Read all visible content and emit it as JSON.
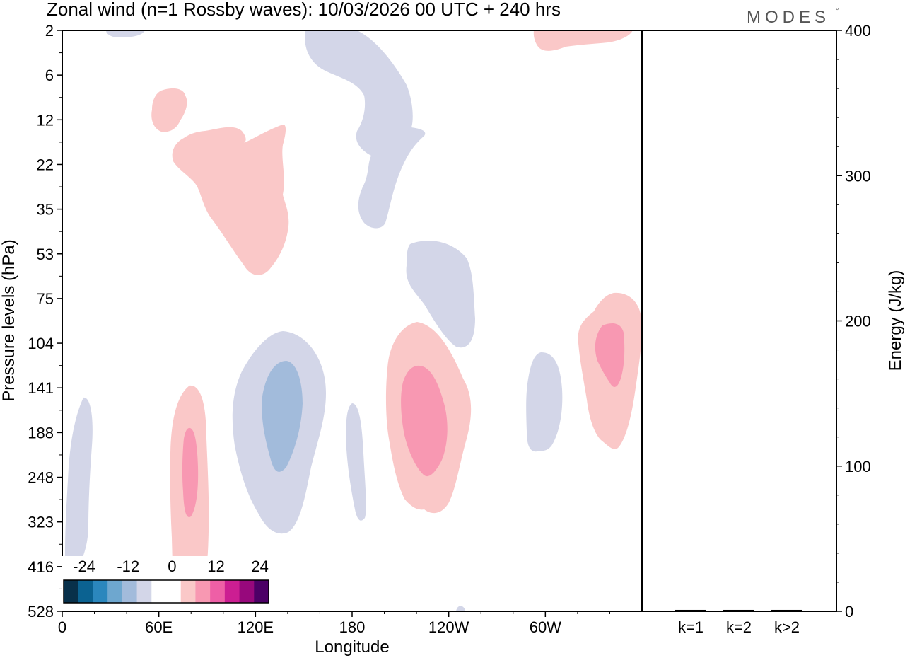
{
  "logo_text": "MODES",
  "logo_mark": "°",
  "chart_data": {
    "type": "heatmap",
    "title": "Zonal wind (n=1 Rossby waves):  10/03/2026  00 UTC  + 240 hrs",
    "xlabel": "Longitude",
    "ylabel": "Pressure levels (hPa)",
    "x_ticks": [
      "0",
      "60E",
      "120E",
      "180",
      "120W",
      "60W"
    ],
    "y_ticks": [
      "2",
      "6",
      "12",
      "22",
      "35",
      "53",
      "75",
      "104",
      "141",
      "188",
      "248",
      "323",
      "416",
      "528"
    ],
    "colorbar": {
      "labels": [
        "-24",
        "-12",
        "0",
        "12",
        "24"
      ],
      "colors": [
        "#08304a",
        "#0b6291",
        "#2b87bd",
        "#6ea7cf",
        "#a2bbdb",
        "#d3d6e8",
        "#ffffff",
        "#ffffff",
        "#fac8c8",
        "#f898b2",
        "#ee5fa6",
        "#cc1e92",
        "#97087c",
        "#4c0066"
      ]
    },
    "contours": [
      {
        "name": "neg-top-left-lobe",
        "level": "weak-negative",
        "color": "#d3d6e8"
      },
      {
        "name": "neg-upper-center",
        "level": "weak-negative",
        "color": "#d3d6e8"
      },
      {
        "name": "neg-mid-center",
        "level": "weak-negative",
        "color": "#d3d6e8"
      },
      {
        "name": "neg-lower-120E",
        "level": "weak-negative",
        "color": "#d3d6e8"
      },
      {
        "name": "neg-lower-120E-core",
        "level": "moderate-negative",
        "color": "#a2bbdb"
      },
      {
        "name": "neg-lower-180",
        "level": "weak-negative",
        "color": "#d3d6e8"
      },
      {
        "name": "neg-lower-60W",
        "level": "weak-negative",
        "color": "#d3d6e8"
      },
      {
        "name": "neg-left-edge",
        "level": "weak-negative",
        "color": "#d3d6e8"
      },
      {
        "name": "pos-small-upper",
        "level": "weak-positive",
        "color": "#fac8c8"
      },
      {
        "name": "pos-upper-60E",
        "level": "weak-positive",
        "color": "#fac8c8"
      },
      {
        "name": "pos-top-right",
        "level": "weak-positive",
        "color": "#fac8c8"
      },
      {
        "name": "pos-lower-60E",
        "level": "weak-positive",
        "color": "#fac8c8"
      },
      {
        "name": "pos-lower-60E-core",
        "level": "moderate-positive",
        "color": "#f898b2"
      },
      {
        "name": "pos-lower-120W",
        "level": "weak-positive",
        "color": "#fac8c8"
      },
      {
        "name": "pos-lower-120W-core",
        "level": "moderate-positive",
        "color": "#f898b2"
      },
      {
        "name": "pos-right-edge",
        "level": "weak-positive",
        "color": "#fac8c8"
      },
      {
        "name": "pos-right-edge-core",
        "level": "moderate-positive",
        "color": "#f898b2"
      }
    ],
    "energy_panel": {
      "ylabel": "Energy (J/kg)",
      "y_ticks": [
        0,
        100,
        200,
        300,
        400
      ],
      "ylim": [
        0,
        400
      ],
      "categories": [
        "k=1",
        "k=2",
        "k>2"
      ],
      "values": [
        0.5,
        0.5,
        0.5
      ]
    }
  }
}
